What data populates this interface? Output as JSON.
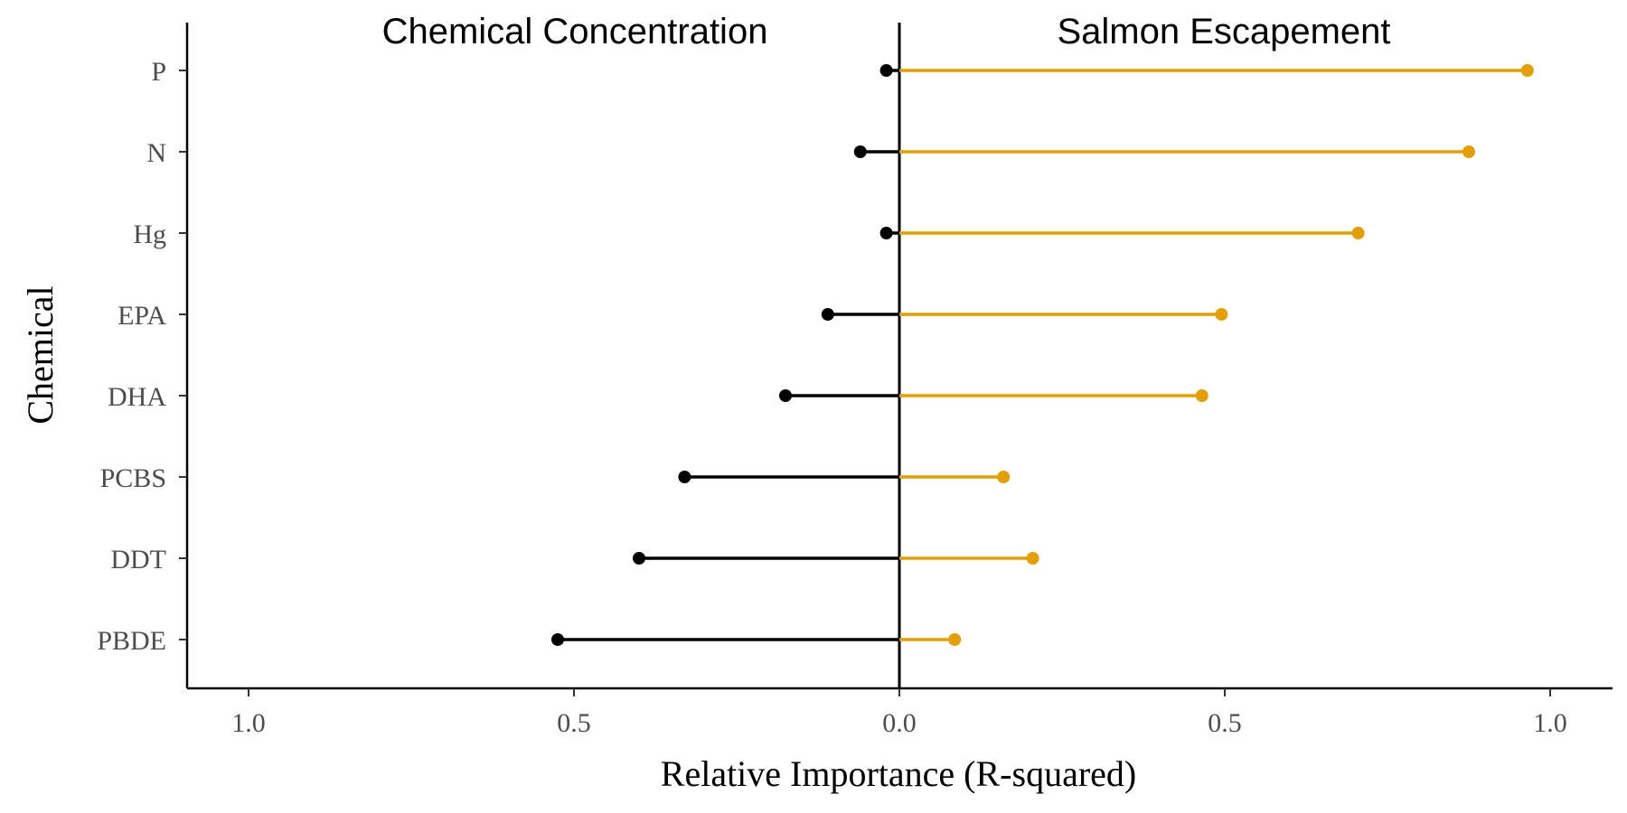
{
  "chart_data": {
    "type": "lollipop",
    "orientation": "horizontal-diverging",
    "xlabel": "Relative Importance (R-squared)",
    "ylabel": "Chemical",
    "xlim": [
      -1.1,
      1.1
    ],
    "x_ticks": [
      -1.0,
      -0.5,
      0.0,
      0.5,
      1.0
    ],
    "x_tick_labels": [
      "1.0",
      "0.5",
      "0.0",
      "0.5",
      "1.0"
    ],
    "categories": [
      "P",
      "N",
      "Hg",
      "EPA",
      "DHA",
      "PCBS",
      "DDT",
      "PBDE"
    ],
    "panel_titles": {
      "left": "Chemical Concentration",
      "right": "Salmon Escapement"
    },
    "series": [
      {
        "name": "Chemical Concentration",
        "color": "#000000",
        "values": [
          -0.02,
          -0.06,
          -0.02,
          -0.11,
          -0.175,
          -0.33,
          -0.4,
          -0.525
        ]
      },
      {
        "name": "Salmon Escapement",
        "color": "#E69F00",
        "values": [
          0.965,
          0.875,
          0.705,
          0.495,
          0.465,
          0.16,
          0.205,
          0.085
        ]
      }
    ],
    "grid": false,
    "legend": "none"
  }
}
